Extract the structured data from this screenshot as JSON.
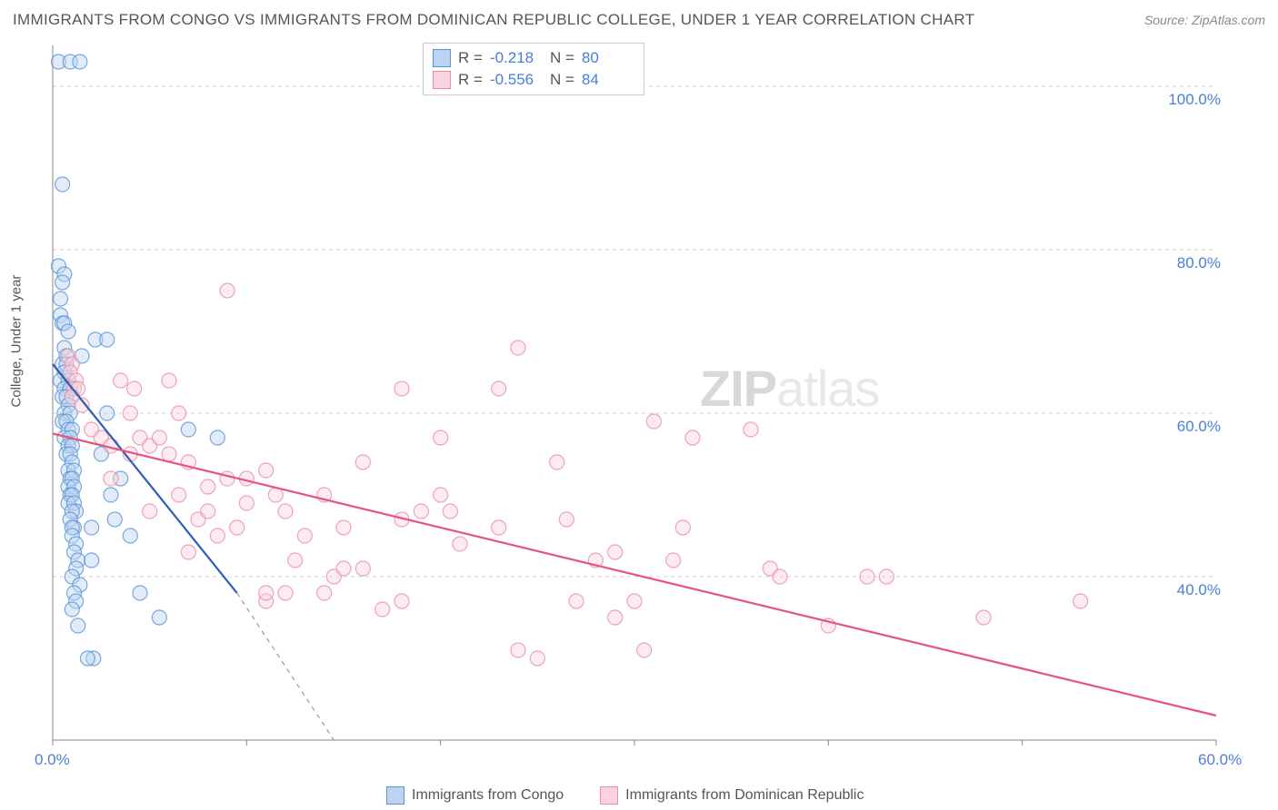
{
  "title": "IMMIGRANTS FROM CONGO VS IMMIGRANTS FROM DOMINICAN REPUBLIC COLLEGE, UNDER 1 YEAR CORRELATION CHART",
  "source": "Source: ZipAtlas.com",
  "y_label": "College, Under 1 year",
  "watermark_zip": "ZIP",
  "watermark_atlas": "atlas",
  "chart": {
    "type": "scatter",
    "background_color": "#ffffff",
    "grid_color": "#d0d0d0",
    "axis_color": "#888888",
    "xlim": [
      0,
      60
    ],
    "ylim": [
      20,
      105
    ],
    "xticks": [
      0,
      10,
      20,
      30,
      40,
      50,
      60
    ],
    "xtick_labels": [
      "0.0%",
      "",
      "",
      "",
      "",
      "",
      "60.0%"
    ],
    "yticks": [
      40,
      60,
      80,
      100
    ],
    "ytick_labels": [
      "40.0%",
      "60.0%",
      "80.0%",
      "100.0%"
    ],
    "marker_radius": 8,
    "marker_opacity": 0.45,
    "series": [
      {
        "name": "Immigrants from Congo",
        "color": "#8fb7e8",
        "fill": "#bcd4f0",
        "stroke": "#5a93d8",
        "R": "-0.218",
        "N": "80",
        "line": {
          "x1": 0,
          "y1": 66,
          "x2": 9.5,
          "y2": 38,
          "extend_x2": 14.5,
          "extend_y2": 20,
          "dash_from": 9.5
        },
        "points": [
          [
            0.3,
            103
          ],
          [
            0.9,
            103
          ],
          [
            1.4,
            103
          ],
          [
            0.5,
            88
          ],
          [
            0.3,
            78
          ],
          [
            0.6,
            77
          ],
          [
            0.5,
            76
          ],
          [
            0.4,
            74
          ],
          [
            0.4,
            72
          ],
          [
            0.5,
            71
          ],
          [
            0.6,
            71
          ],
          [
            0.8,
            70
          ],
          [
            2.2,
            69
          ],
          [
            2.8,
            69
          ],
          [
            0.6,
            68
          ],
          [
            0.7,
            67
          ],
          [
            0.5,
            66
          ],
          [
            0.7,
            66
          ],
          [
            0.6,
            65
          ],
          [
            0.4,
            64
          ],
          [
            0.8,
            64
          ],
          [
            0.6,
            63
          ],
          [
            0.9,
            63
          ],
          [
            0.5,
            62
          ],
          [
            0.7,
            62
          ],
          [
            0.8,
            61
          ],
          [
            0.6,
            60
          ],
          [
            0.9,
            60
          ],
          [
            0.5,
            59
          ],
          [
            0.7,
            59
          ],
          [
            0.8,
            58
          ],
          [
            1.0,
            58
          ],
          [
            0.6,
            57
          ],
          [
            0.9,
            57
          ],
          [
            0.8,
            56
          ],
          [
            1.0,
            56
          ],
          [
            0.7,
            55
          ],
          [
            0.9,
            55
          ],
          [
            1.0,
            54
          ],
          [
            0.8,
            53
          ],
          [
            1.1,
            53
          ],
          [
            0.9,
            52
          ],
          [
            1.0,
            52
          ],
          [
            0.8,
            51
          ],
          [
            1.1,
            51
          ],
          [
            0.9,
            50
          ],
          [
            1.0,
            50
          ],
          [
            0.8,
            49
          ],
          [
            1.1,
            49
          ],
          [
            1.2,
            48
          ],
          [
            1.0,
            48
          ],
          [
            3.2,
            47
          ],
          [
            0.9,
            47
          ],
          [
            1.1,
            46
          ],
          [
            1.0,
            46
          ],
          [
            2.0,
            46
          ],
          [
            4.0,
            45
          ],
          [
            1.0,
            45
          ],
          [
            1.2,
            44
          ],
          [
            1.1,
            43
          ],
          [
            1.3,
            42
          ],
          [
            8.5,
            57
          ],
          [
            1.2,
            41
          ],
          [
            1.0,
            40
          ],
          [
            1.4,
            39
          ],
          [
            1.1,
            38
          ],
          [
            1.2,
            37
          ],
          [
            1.0,
            36
          ],
          [
            5.5,
            35
          ],
          [
            1.3,
            34
          ],
          [
            7.0,
            58
          ],
          [
            2.1,
            30
          ],
          [
            1.8,
            30
          ],
          [
            3.0,
            50
          ],
          [
            2.5,
            55
          ],
          [
            3.5,
            52
          ],
          [
            2.0,
            42
          ],
          [
            4.5,
            38
          ],
          [
            1.5,
            67
          ],
          [
            2.8,
            60
          ]
        ]
      },
      {
        "name": "Immigrants from Dominican Republic",
        "color": "#f4b5c6",
        "fill": "#f9d3dd",
        "stroke": "#eb8fa8",
        "R": "-0.556",
        "N": "84",
        "line": {
          "x1": 0,
          "y1": 57.5,
          "x2": 60,
          "y2": 23
        },
        "points": [
          [
            0.8,
            67
          ],
          [
            1.0,
            66
          ],
          [
            0.9,
            65
          ],
          [
            1.2,
            64
          ],
          [
            1.1,
            63
          ],
          [
            1.3,
            63
          ],
          [
            1.0,
            62
          ],
          [
            3.5,
            64
          ],
          [
            4.2,
            63
          ],
          [
            6.0,
            64
          ],
          [
            9.0,
            75
          ],
          [
            1.5,
            61
          ],
          [
            6.5,
            60
          ],
          [
            4.0,
            60
          ],
          [
            2.0,
            58
          ],
          [
            2.5,
            57
          ],
          [
            3.0,
            56
          ],
          [
            4.5,
            57
          ],
          [
            5.0,
            56
          ],
          [
            24.0,
            68
          ],
          [
            23.0,
            63
          ],
          [
            18.0,
            63
          ],
          [
            20.0,
            57
          ],
          [
            6.0,
            55
          ],
          [
            5.5,
            57
          ],
          [
            4.0,
            55
          ],
          [
            7.0,
            54
          ],
          [
            9.0,
            52
          ],
          [
            10.0,
            52
          ],
          [
            11.0,
            53
          ],
          [
            11.5,
            50
          ],
          [
            12.0,
            48
          ],
          [
            8.0,
            51
          ],
          [
            14.0,
            50
          ],
          [
            16.0,
            54
          ],
          [
            20.0,
            50
          ],
          [
            20.5,
            48
          ],
          [
            21.0,
            44
          ],
          [
            18.0,
            47
          ],
          [
            11.0,
            37
          ],
          [
            12.0,
            38
          ],
          [
            14.0,
            38
          ],
          [
            14.5,
            40
          ],
          [
            15.0,
            41
          ],
          [
            26.0,
            54
          ],
          [
            26.5,
            47
          ],
          [
            27.0,
            37
          ],
          [
            28.0,
            42
          ],
          [
            29.0,
            35
          ],
          [
            31.0,
            59
          ],
          [
            32.0,
            42
          ],
          [
            32.5,
            46
          ],
          [
            33.0,
            57
          ],
          [
            36.0,
            58
          ],
          [
            17.0,
            36
          ],
          [
            18.0,
            37
          ],
          [
            24.0,
            31
          ],
          [
            25.0,
            30
          ],
          [
            13.0,
            45
          ],
          [
            30.0,
            37
          ],
          [
            30.5,
            31
          ],
          [
            19.0,
            48
          ],
          [
            7.5,
            47
          ],
          [
            8.5,
            45
          ],
          [
            10.0,
            49
          ],
          [
            11.0,
            38
          ],
          [
            37.0,
            41
          ],
          [
            37.5,
            40
          ],
          [
            40.0,
            34
          ],
          [
            42.0,
            40
          ],
          [
            43.0,
            40
          ],
          [
            48.0,
            35
          ],
          [
            53.0,
            37
          ],
          [
            23.0,
            46
          ],
          [
            15.0,
            46
          ],
          [
            3.0,
            52
          ],
          [
            7.0,
            43
          ],
          [
            16.0,
            41
          ],
          [
            12.5,
            42
          ],
          [
            5.0,
            48
          ],
          [
            6.5,
            50
          ],
          [
            8.0,
            48
          ],
          [
            9.5,
            46
          ],
          [
            29.0,
            43
          ]
        ]
      }
    ]
  },
  "legend": {
    "s1": "Immigrants from Congo",
    "s2": "Immigrants from Dominican Republic"
  }
}
